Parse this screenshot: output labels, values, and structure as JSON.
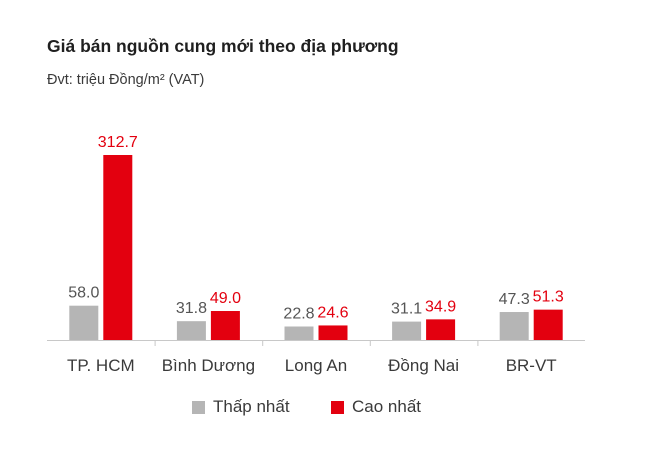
{
  "chart_data": {
    "type": "bar",
    "title": "Giá bán nguồn cung mới theo địa phương",
    "subtitle": "Đvt: triệu Đồng/m² (VAT)",
    "categories": [
      "TP. HCM",
      "Bình Dương",
      "Long An",
      "Đồng Nai",
      "BR-VT"
    ],
    "series": [
      {
        "name": "Thấp nhất",
        "color": "#b5b5b5",
        "label_color": "#555555",
        "values": [
          58.0,
          31.8,
          22.8,
          31.1,
          47.3
        ]
      },
      {
        "name": "Cao nhất",
        "color": "#e3000f",
        "label_color": "#e3000f",
        "values": [
          312.7,
          49.0,
          24.6,
          34.9,
          51.3
        ]
      }
    ],
    "data_labels": [
      [
        "58.0",
        "31.8",
        "22.8",
        "31.1",
        "47.3"
      ],
      [
        "312.7",
        "49.0",
        "24.6",
        "34.9",
        "51.3"
      ]
    ],
    "ylim": [
      0,
      312.7
    ],
    "grid": false,
    "legend_position": "bottom-center",
    "xlabel": "",
    "ylabel": ""
  }
}
